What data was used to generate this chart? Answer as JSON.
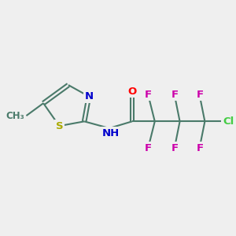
{
  "bg_color": "#efefef",
  "bond_color": "#4a7a6a",
  "line_width": 1.5,
  "atom_colors": {
    "O": "#ff0000",
    "N": "#0000cc",
    "S": "#aaaa00",
    "F": "#cc00aa",
    "Cl": "#44cc44",
    "C": "#4a7a6a",
    "CH3": "#4a7a6a"
  },
  "font_size": 9.5
}
